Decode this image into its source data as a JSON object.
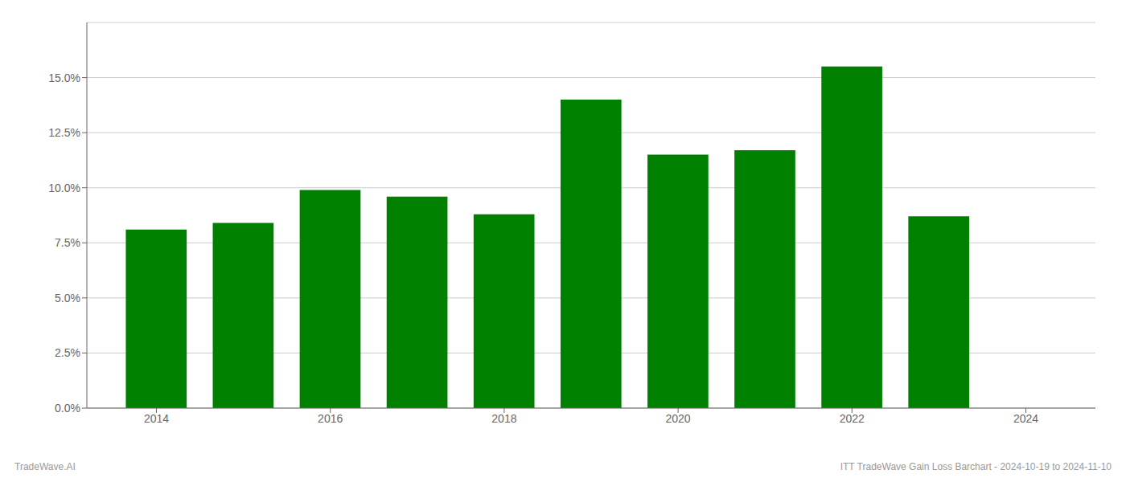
{
  "chart_data": {
    "type": "bar",
    "x": [
      2014,
      2015,
      2016,
      2017,
      2018,
      2019,
      2020,
      2021,
      2022,
      2023
    ],
    "values": [
      0.081,
      0.084,
      0.099,
      0.096,
      0.088,
      0.14,
      0.115,
      0.117,
      0.155,
      0.087
    ],
    "color": "#008000",
    "xlim": [
      2013.2,
      2024.8
    ],
    "xticks": [
      2014,
      2016,
      2018,
      2020,
      2022,
      2024
    ],
    "ylim": [
      0,
      0.175
    ],
    "yticks": [
      {
        "value": 0.0,
        "label": "0.0%"
      },
      {
        "value": 0.025,
        "label": "2.5%"
      },
      {
        "value": 0.05,
        "label": "5.0%"
      },
      {
        "value": 0.075,
        "label": "7.5%"
      },
      {
        "value": 0.1,
        "label": "10.0%"
      },
      {
        "value": 0.125,
        "label": "12.5%"
      },
      {
        "value": 0.15,
        "label": "15.0%"
      }
    ],
    "grid": true,
    "annotations": [
      "TradeWave.AI",
      "ITT TradeWave Gain Loss Barchart - 2024-10-19 to 2024-11-10"
    ]
  }
}
